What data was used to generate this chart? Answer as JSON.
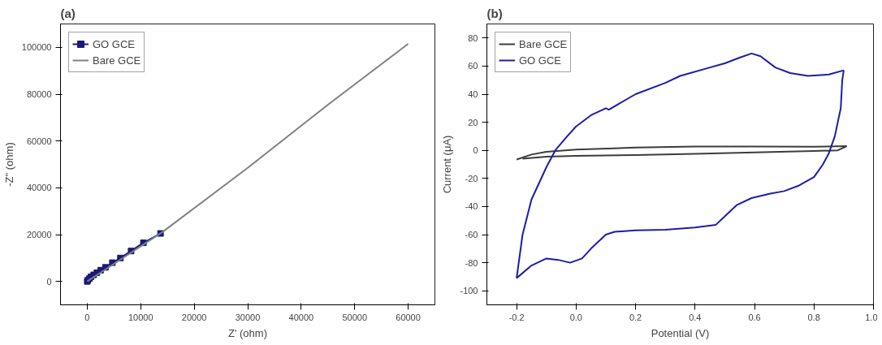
{
  "chart_data": [
    {
      "type": "line",
      "title": "(a)",
      "xlabel": "Z' (ohm)",
      "ylabel": "-Z\" (ohm)",
      "xlim": [
        -5000,
        65000
      ],
      "ylim": [
        -10000,
        110000
      ],
      "xticks": [
        0,
        10000,
        20000,
        30000,
        40000,
        50000,
        60000
      ],
      "yticks": [
        0,
        20000,
        40000,
        60000,
        80000,
        100000
      ],
      "grid": false,
      "legend": "top left",
      "series": [
        {
          "name": "GO GCE",
          "color": "#1a1a7a",
          "marker": "square",
          "x": [
            0,
            100,
            400,
            700,
            1200,
            1800,
            2500,
            3400,
            4700,
            6200,
            8200,
            10500,
            13700
          ],
          "values": [
            0,
            500,
            1200,
            2000,
            2800,
            3700,
            4800,
            6000,
            8000,
            10000,
            13000,
            16500,
            20500
          ]
        },
        {
          "name": "Bare GCE",
          "color": "#808080",
          "marker": "none",
          "x": [
            0,
            500,
            2000,
            14000,
            30000,
            45000,
            60000
          ],
          "values": [
            0,
            800,
            3000,
            21000,
            48500,
            75500,
            101500
          ]
        }
      ]
    },
    {
      "type": "line",
      "title": "(b)",
      "xlabel": "Potential (V)",
      "ylabel": "Current (μA)",
      "xlim": [
        -0.3,
        1.0
      ],
      "ylim": [
        -110,
        90
      ],
      "xticks": [
        {
          "value": -0.2,
          "label": "-0.2"
        },
        {
          "value": 0,
          "label": "0.0"
        },
        {
          "value": 0.2,
          "label": "0.2"
        },
        {
          "value": 0.4,
          "label": "0.4"
        },
        {
          "value": 0.6,
          "label": "0.6"
        },
        {
          "value": 0.8,
          "label": "0.8"
        },
        {
          "value": 1.0,
          "label": "1.0"
        }
      ],
      "yticks": [
        -100,
        -80,
        -60,
        -40,
        -20,
        0,
        20,
        40,
        60,
        80
      ],
      "grid": false,
      "legend": "top left",
      "series": [
        {
          "name": "Bare GCE",
          "color": "#3c3c3c",
          "x": [
            -0.2,
            -0.15,
            -0.1,
            0,
            0.2,
            0.4,
            0.6,
            0.8,
            0.91
          ],
          "values": [
            -6.5,
            -3,
            -1,
            0.5,
            2,
            2.7,
            2.7,
            2.6,
            3
          ]
        },
        {
          "color": "#3c3c3c",
          "x": [
            0.91,
            0.88,
            0.8,
            0.6,
            0.4,
            0.2,
            0,
            -0.1,
            -0.18
          ],
          "values": [
            3,
            0,
            -0.5,
            -1.5,
            -2.5,
            -3.3,
            -4,
            -4.5,
            -6
          ]
        },
        {
          "name": "GO GCE",
          "color": "#1c1caa",
          "x": [
            -0.2,
            -0.18,
            -0.15,
            -0.1,
            -0.07,
            -0.03,
            0,
            0.05,
            0.1,
            0.11,
            0.2,
            0.3,
            0.35,
            0.45,
            0.5,
            0.55,
            0.59,
            0.62,
            0.67,
            0.72,
            0.78,
            0.85,
            0.9
          ],
          "values": [
            -91,
            -60,
            -35,
            -12,
            0,
            10,
            17,
            25,
            30,
            29,
            40,
            48,
            53,
            59,
            62,
            66,
            69,
            67,
            59,
            55,
            53,
            54,
            57
          ]
        },
        {
          "color": "#1c1caa",
          "x": [
            0.9,
            0.895,
            0.89,
            0.87,
            0.85,
            0.83,
            0.8,
            0.75,
            0.7,
            0.65,
            0.59,
            0.54,
            0.5,
            0.47,
            0.4,
            0.3,
            0.2,
            0.13,
            0.1,
            0.05,
            0.02,
            -0.02,
            -0.06,
            -0.1,
            -0.15,
            -0.2
          ],
          "values": [
            57,
            50,
            30,
            10,
            -2,
            -10,
            -19,
            -25,
            -29,
            -31,
            -34,
            -39,
            -47,
            -53,
            -55,
            -56.5,
            -57,
            -58,
            -60,
            -70,
            -77,
            -80,
            -78,
            -77,
            -82,
            -91
          ]
        }
      ]
    }
  ]
}
